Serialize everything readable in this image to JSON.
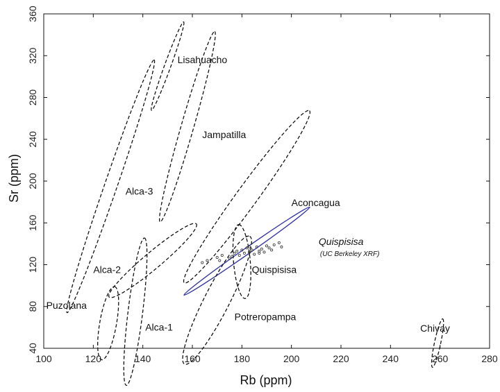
{
  "chart_data": {
    "type": "scatter",
    "xlabel": "Rb (ppm)",
    "ylabel": "Sr (ppm)",
    "xlim": [
      100,
      280
    ],
    "ylim": [
      40,
      360
    ],
    "xticks": [
      "100",
      "120",
      "140",
      "160",
      "180",
      "200",
      "220",
      "240",
      "260",
      "280"
    ],
    "yticks": [
      "40",
      "80",
      "120",
      "160",
      "200",
      "240",
      "280",
      "320",
      "360"
    ],
    "grid": false,
    "groups": [
      {
        "name": "Lisahuacho",
        "style": "dashed",
        "cx": 150,
        "cy": 310,
        "rx": 3,
        "ry": 19,
        "angle": -70,
        "label_x": 154,
        "label_y": 313
      },
      {
        "name": "Jampatilla",
        "style": "dashed",
        "cx": 158,
        "cy": 252,
        "rx": 6,
        "ry": 40,
        "angle": -74,
        "label_x": 164,
        "label_y": 241
      },
      {
        "name": "Alca-3",
        "style": "dashed",
        "cx": 127,
        "cy": 195,
        "rx": 6,
        "ry": 54,
        "angle": -71,
        "label_x": 133,
        "label_y": 187
      },
      {
        "name": "Aconcagua",
        "style": "dashed",
        "cx": 182,
        "cy": 185,
        "rx": 10,
        "ry": 43,
        "angle": -54,
        "label_x": 200,
        "label_y": 176
      },
      {
        "name": "Quispisisa",
        "style": "solid",
        "cx": 182,
        "cy": 133,
        "rx": 3,
        "ry": 31,
        "angle": -35,
        "label_x": 211,
        "label_y": 139,
        "italic": true,
        "note": "(UC Berkeley XRF)"
      },
      {
        "name": "Quispisisa",
        "style": "dashed",
        "cx": 180,
        "cy": 123,
        "rx": 8,
        "ry": 15,
        "angle": -95,
        "label_x": 184,
        "label_y": 112
      },
      {
        "name": "Alca-2",
        "style": "dashed",
        "cx": 144,
        "cy": 124,
        "rx": 8,
        "ry": 23,
        "angle": -40,
        "label_x": 120,
        "label_y": 112
      },
      {
        "name": "Potreropampa",
        "style": "dashed",
        "cx": 170,
        "cy": 86,
        "rx": 12,
        "ry": 29,
        "angle": -63,
        "label_x": 177,
        "label_y": 67
      },
      {
        "name": "Puzolana",
        "style": "dashed",
        "cx": 126,
        "cy": 64,
        "rx": 8,
        "ry": 15,
        "angle": -80,
        "label_x": 101,
        "label_y": 78
      },
      {
        "name": "Alca-1",
        "style": "dashed",
        "cx": 137,
        "cy": 75,
        "rx": 7,
        "ry": 30,
        "angle": -83,
        "label_x": 141,
        "label_y": 57
      },
      {
        "name": "Chivay",
        "style": "dashed",
        "cx": 259,
        "cy": 45,
        "rx": 3,
        "ry": 10,
        "angle": -78,
        "label_x": 252,
        "label_y": 56
      }
    ],
    "points": [
      {
        "x": 164,
        "y": 122
      },
      {
        "x": 166,
        "y": 124
      },
      {
        "x": 170,
        "y": 127
      },
      {
        "x": 172,
        "y": 129
      },
      {
        "x": 175,
        "y": 126
      },
      {
        "x": 177,
        "y": 131
      },
      {
        "x": 178,
        "y": 133
      },
      {
        "x": 179,
        "y": 129
      },
      {
        "x": 180,
        "y": 134
      },
      {
        "x": 181,
        "y": 131
      },
      {
        "x": 182,
        "y": 136
      },
      {
        "x": 183,
        "y": 132
      },
      {
        "x": 184,
        "y": 134
      },
      {
        "x": 185,
        "y": 130
      },
      {
        "x": 186,
        "y": 137
      },
      {
        "x": 187,
        "y": 133
      },
      {
        "x": 188,
        "y": 135
      },
      {
        "x": 189,
        "y": 132
      },
      {
        "x": 190,
        "y": 138
      },
      {
        "x": 191,
        "y": 136
      },
      {
        "x": 192,
        "y": 134
      },
      {
        "x": 193,
        "y": 139
      },
      {
        "x": 195,
        "y": 141
      },
      {
        "x": 196,
        "y": 137
      },
      {
        "x": 171,
        "y": 124
      },
      {
        "x": 176,
        "y": 128
      },
      {
        "x": 183,
        "y": 137
      },
      {
        "x": 187,
        "y": 131
      }
    ]
  }
}
